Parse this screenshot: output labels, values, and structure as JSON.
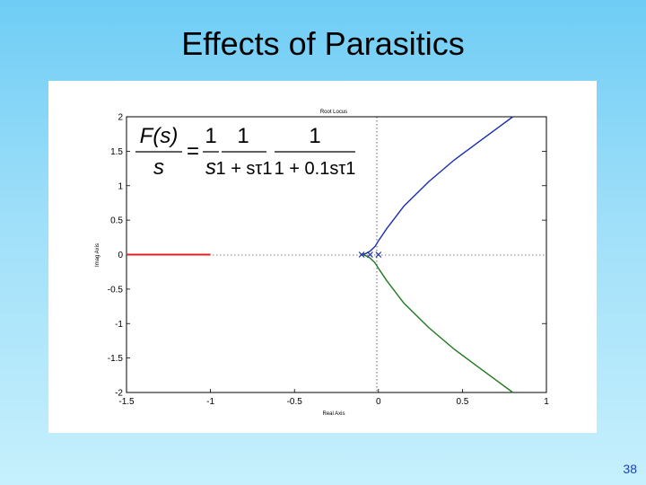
{
  "slide": {
    "title": "Effects of Parasitics",
    "page_number": "38"
  },
  "chart_data": {
    "type": "line",
    "title": "Root Locus",
    "xlabel": "Real Axis",
    "ylabel": "Imag Axis",
    "xlim": [
      -1.5,
      1
    ],
    "ylim": [
      -2,
      2
    ],
    "xticks": [
      "-1.5",
      "-1",
      "-0.5",
      "0",
      "0.5",
      "1"
    ],
    "yticks": [
      "2",
      "1.5",
      "1",
      "0.5",
      "0",
      "-0.5",
      "-1",
      "-1.5",
      "-2"
    ],
    "grid": false,
    "reference_lines": {
      "x": 0,
      "y": 0,
      "style": "dotted"
    },
    "equation": {
      "lhs_num": "F(s)",
      "lhs_den": "s",
      "eq": "=",
      "f1_num": "1",
      "f1_den": "s",
      "f2_num": "1",
      "f2_den": "1 + sτ1",
      "f3_num": "1",
      "f3_den": "1 + 0.1sτ1"
    },
    "series": [
      {
        "color": "#e02020",
        "x": [
          -1.5,
          -1.35,
          -1.2,
          -1.0
        ],
        "y": [
          0,
          0,
          0,
          0
        ]
      },
      {
        "color": "#1a2fa8",
        "x": [
          -0.1,
          -0.08,
          -0.05,
          -0.02,
          0.0,
          0.05,
          0.15,
          0.3,
          0.45,
          0.6,
          0.7,
          0.8
        ],
        "y": [
          0.0,
          0.01,
          0.05,
          0.12,
          0.2,
          0.38,
          0.7,
          1.06,
          1.37,
          1.64,
          1.82,
          2.0
        ]
      },
      {
        "color": "#1f7a1f",
        "x": [
          -0.1,
          -0.08,
          -0.05,
          -0.02,
          0.0,
          0.05,
          0.15,
          0.3,
          0.45,
          0.6,
          0.7,
          0.8
        ],
        "y": [
          0.0,
          -0.01,
          -0.05,
          -0.12,
          -0.2,
          -0.38,
          -0.7,
          -1.06,
          -1.37,
          -1.64,
          -1.82,
          -2.0
        ]
      }
    ],
    "markers": [
      {
        "x": -0.1,
        "y": 0,
        "symbol": "x",
        "color": "#1a2fa8"
      },
      {
        "x": -0.05,
        "y": 0,
        "symbol": "x",
        "color": "#1a2fa8"
      },
      {
        "x": 0,
        "y": 0,
        "symbol": "x",
        "color": "#1a2fa8"
      }
    ],
    "right_tick_marks": [
      1.5,
      1,
      0.5,
      -1
    ]
  }
}
